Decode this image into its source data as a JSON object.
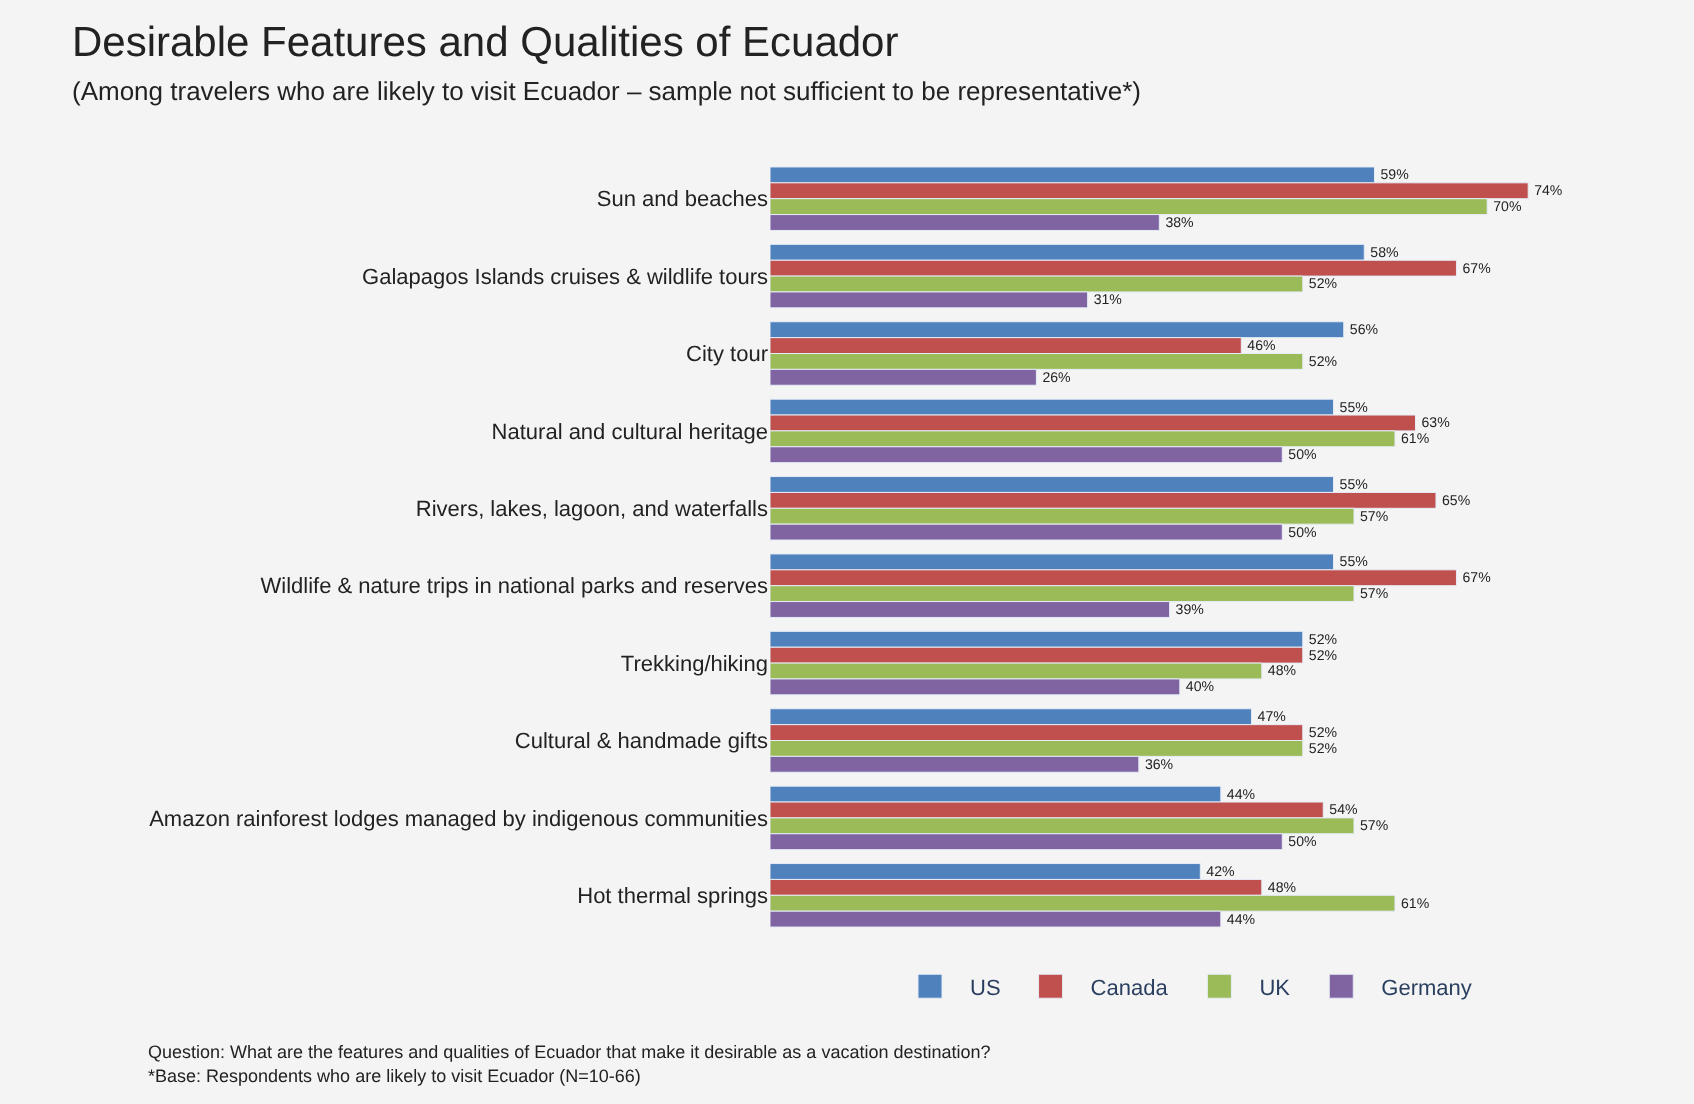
{
  "chart_data": {
    "type": "bar",
    "orientation": "horizontal",
    "title": "Desirable Features and Qualities of Ecuador",
    "subtitle": "(Among travelers who are likely to visit Ecuador – sample not sufficient to be representative*)",
    "categories": [
      "Sun and beaches",
      "Galapagos Islands cruises & wildlife tours",
      "City tour",
      "Natural and cultural heritage",
      "Rivers, lakes, lagoon, and waterfalls",
      "Wildlife & nature trips in national parks and reserves",
      "Trekking/hiking",
      "Cultural & handmade gifts",
      "Amazon rainforest lodges managed by indigenous communities",
      "Hot thermal springs"
    ],
    "series": [
      {
        "name": "US",
        "color": "#4f81bd",
        "values": [
          59,
          58,
          56,
          55,
          55,
          55,
          52,
          47,
          44,
          42
        ],
        "value_labels": [
          "59%",
          "58%",
          "56%",
          "55%",
          "55%",
          "55%",
          "52%",
          "47%",
          "44%",
          "42%"
        ]
      },
      {
        "name": "Canada",
        "color": "#c0504d",
        "values": [
          74,
          67,
          46,
          63,
          65,
          67,
          52,
          52,
          54,
          48
        ],
        "value_labels": [
          "74%",
          "67%",
          "46%",
          "63%",
          "65%",
          "67%",
          "52%",
          "52%",
          "54%",
          "48%"
        ]
      },
      {
        "name": "UK",
        "color": "#9bbb59",
        "values": [
          70,
          52,
          52,
          61,
          57,
          57,
          48,
          52,
          57,
          61
        ],
        "value_labels": [
          "70%",
          "52%",
          "52%",
          "61%",
          "57%",
          "57%",
          "48%",
          "52%",
          "57%",
          "61%"
        ]
      },
      {
        "name": "Germany",
        "color": "#8064a2",
        "values": [
          38,
          31,
          26,
          50,
          50,
          39,
          40,
          36,
          50,
          44
        ],
        "value_labels": [
          "38%",
          "31%",
          "26%",
          "50%",
          "50%",
          "39%",
          "40%",
          "36%",
          "50%",
          "44%"
        ]
      }
    ],
    "legend": "bottom",
    "grid": false,
    "tick_labels": "y",
    "annotations": [
      "Question: What are the features and qualities of Ecuador that make it desirable as a vacation destination?",
      "*Base: Respondents who are likely to visit Ecuador (N=10-66)"
    ]
  }
}
